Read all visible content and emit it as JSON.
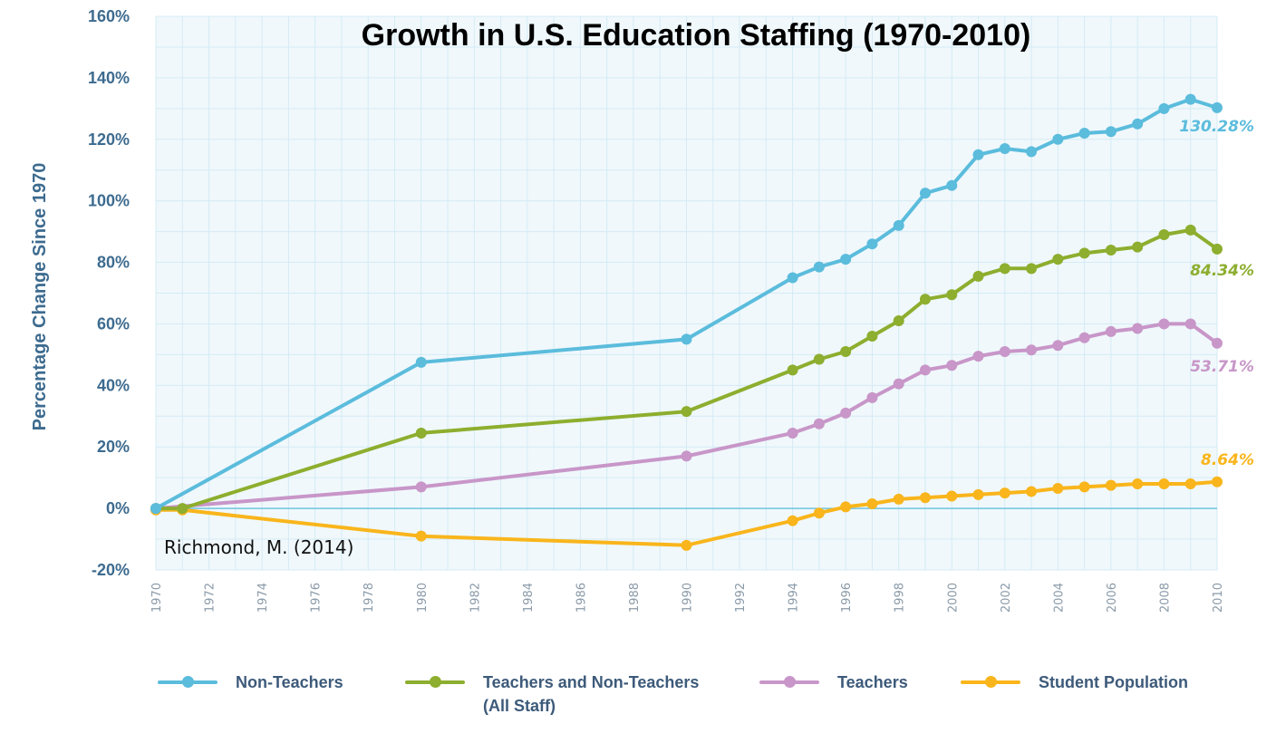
{
  "chart_data": {
    "type": "line",
    "title": "Growth in U.S. Education Staffing (1970-2010)",
    "ylabel": "Percentage Change Since 1970",
    "xlabel": "",
    "annotation": "Richmond, M. (2014)",
    "ylim": [
      -20,
      160
    ],
    "xlim": [
      1970,
      2010
    ],
    "yticks": [
      -20,
      0,
      20,
      40,
      60,
      80,
      100,
      120,
      140,
      160
    ],
    "ytick_labels": [
      "-20%",
      "0%",
      "20%",
      "40%",
      "60%",
      "80%",
      "100%",
      "120%",
      "140%",
      "160%"
    ],
    "xticks": [
      1970,
      1972,
      1974,
      1976,
      1978,
      1980,
      1982,
      1984,
      1986,
      1988,
      1990,
      1992,
      1994,
      1996,
      1998,
      2000,
      2002,
      2004,
      2006,
      2008,
      2010
    ],
    "xtick_labels": [
      "1970",
      "1972",
      "1974",
      "1976",
      "1978",
      "1980",
      "1982",
      "1984",
      "1986",
      "1988",
      "1990",
      "1992",
      "1994",
      "1996",
      "1998",
      "2000",
      "2002",
      "2004",
      "2006",
      "2008",
      "2010"
    ],
    "grid": true,
    "legend_position": "bottom",
    "series": [
      {
        "name": "Non-Teachers",
        "color": "#5bbcdc",
        "end_label": "130.28%",
        "x": [
          1970,
          1980,
          1990,
          1994,
          1995,
          1996,
          1997,
          1998,
          1999,
          2000,
          2001,
          2002,
          2003,
          2004,
          2005,
          2006,
          2007,
          2008,
          2009,
          2010
        ],
        "values": [
          0,
          47.5,
          55,
          75,
          78.5,
          81,
          86,
          92,
          102.5,
          105,
          115,
          117,
          116,
          120,
          122,
          122.5,
          125,
          130,
          133,
          130.28
        ]
      },
      {
        "name": "Teachers and Non-Teachers",
        "sublabel": "(All Staff)",
        "color": "#8dae2e",
        "end_label": "84.34%",
        "x": [
          1970,
          1971,
          1980,
          1990,
          1994,
          1995,
          1996,
          1997,
          1998,
          1999,
          2000,
          2001,
          2002,
          2003,
          2004,
          2005,
          2006,
          2007,
          2008,
          2009,
          2010
        ],
        "values": [
          0,
          0,
          24.5,
          31.5,
          45,
          48.5,
          51,
          56,
          61,
          68,
          69.5,
          75.5,
          78,
          78,
          81,
          83,
          84,
          85,
          89,
          90.5,
          84.34
        ]
      },
      {
        "name": "Teachers",
        "color": "#c896c8",
        "end_label": "53.71%",
        "x": [
          1970,
          1980,
          1990,
          1994,
          1995,
          1996,
          1997,
          1998,
          1999,
          2000,
          2001,
          2002,
          2003,
          2004,
          2005,
          2006,
          2007,
          2008,
          2009,
          2010
        ],
        "values": [
          0,
          7,
          17,
          24.5,
          27.5,
          31,
          36,
          40.5,
          45,
          46.5,
          49.5,
          51,
          51.5,
          53,
          55.5,
          57.5,
          58.5,
          60,
          60,
          53.71
        ]
      },
      {
        "name": "Student Population",
        "color": "#f9b51b",
        "end_label": "8.64%",
        "x": [
          1970,
          1971,
          1980,
          1990,
          1994,
          1995,
          1996,
          1997,
          1998,
          1999,
          2000,
          2001,
          2002,
          2003,
          2004,
          2005,
          2006,
          2007,
          2008,
          2009,
          2010
        ],
        "values": [
          -0.5,
          -0.5,
          -9,
          -12,
          -4,
          -1.5,
          0.5,
          1.5,
          3,
          3.5,
          4,
          4.5,
          5,
          5.5,
          6.5,
          7,
          7.5,
          8,
          8,
          8,
          8.64
        ]
      }
    ]
  }
}
